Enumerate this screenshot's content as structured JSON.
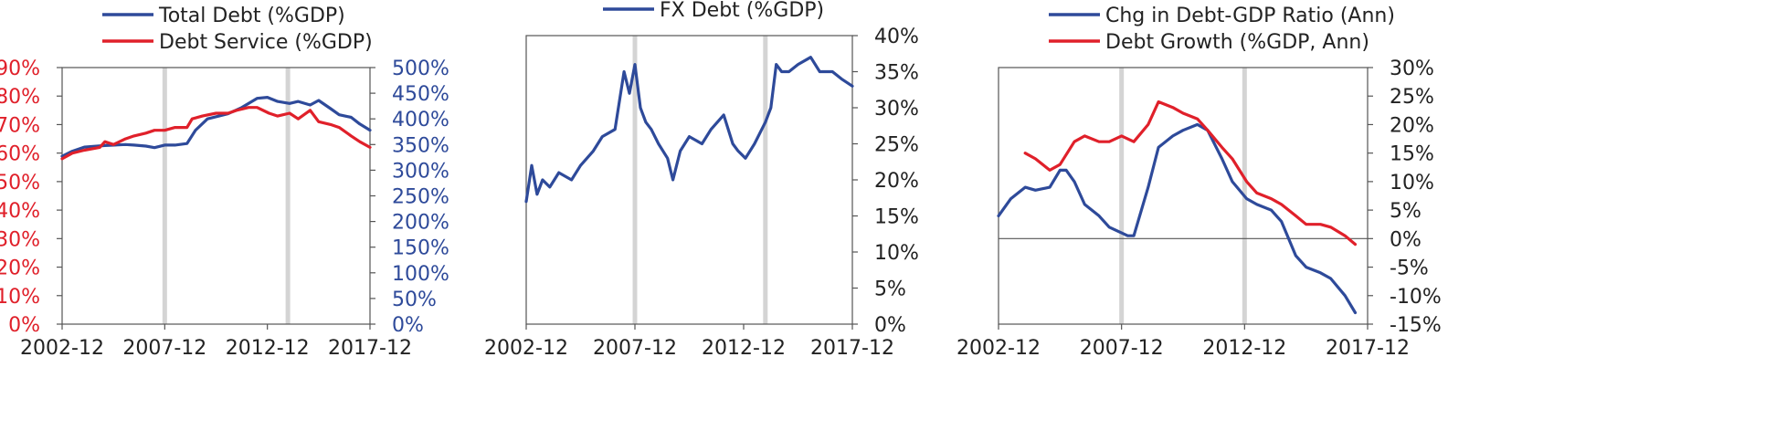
{
  "colors": {
    "blue": "#2e4a9a",
    "red": "#e0202a",
    "axis": "#555555",
    "text": "#222222",
    "shade": "#d4d4d4"
  },
  "chart_data": [
    {
      "type": "line",
      "x_ticks": [
        "2002-12",
        "2007-12",
        "2012-12",
        "2017-12"
      ],
      "xlim": [
        "2002-12",
        "2017-12"
      ],
      "shaded_dates": [
        "2007-12",
        "2013-12"
      ],
      "left_axis": {
        "ylim": [
          0,
          90
        ],
        "ticks": [
          "0%",
          "10%",
          "20%",
          "30%",
          "40%",
          "50%",
          "60%",
          "70%",
          "80%",
          "90%"
        ],
        "color": "red"
      },
      "right_axis": {
        "ylim": [
          0,
          500
        ],
        "ticks": [
          "0%",
          "50%",
          "100%",
          "150%",
          "200%",
          "250%",
          "300%",
          "350%",
          "400%",
          "450%",
          "500%"
        ],
        "color": "blue"
      },
      "legend": [
        "Total Debt (%GDP)",
        "Debt Service (%GDP)"
      ],
      "series": [
        {
          "name": "Total Debt (%GDP)",
          "axis": "right",
          "color": "blue",
          "points": [
            [
              "2002-12",
              327
            ],
            [
              "2003-06",
              337
            ],
            [
              "2004-01",
              345
            ],
            [
              "2005-01",
              348
            ],
            [
              "2006-01",
              350
            ],
            [
              "2006-06",
              349
            ],
            [
              "2007-01",
              347
            ],
            [
              "2007-06",
              344
            ],
            [
              "2007-12",
              349
            ],
            [
              "2008-06",
              349
            ],
            [
              "2009-01",
              352
            ],
            [
              "2009-06",
              378
            ],
            [
              "2010-01",
              400
            ],
            [
              "2011-01",
              410
            ],
            [
              "2011-09",
              422
            ],
            [
              "2012-06",
              440
            ],
            [
              "2012-12",
              442
            ],
            [
              "2013-06",
              434
            ],
            [
              "2014-01",
              430
            ],
            [
              "2014-06",
              434
            ],
            [
              "2015-01",
              427
            ],
            [
              "2015-06",
              436
            ],
            [
              "2016-01",
              420
            ],
            [
              "2016-06",
              408
            ],
            [
              "2017-01",
              403
            ],
            [
              "2017-06",
              390
            ],
            [
              "2017-12",
              378
            ]
          ]
        },
        {
          "name": "Debt Service (%GDP)",
          "axis": "left",
          "color": "red",
          "points": [
            [
              "2002-12",
              58
            ],
            [
              "2003-06",
              60
            ],
            [
              "2004-01",
              61
            ],
            [
              "2004-10",
              62
            ],
            [
              "2005-01",
              64
            ],
            [
              "2005-06",
              63
            ],
            [
              "2006-01",
              65
            ],
            [
              "2006-06",
              66
            ],
            [
              "2007-01",
              67
            ],
            [
              "2007-06",
              68
            ],
            [
              "2007-12",
              68
            ],
            [
              "2008-06",
              69
            ],
            [
              "2009-01",
              69
            ],
            [
              "2009-04",
              72
            ],
            [
              "2009-10",
              73
            ],
            [
              "2010-06",
              74
            ],
            [
              "2011-01",
              74
            ],
            [
              "2011-06",
              75
            ],
            [
              "2012-01",
              76
            ],
            [
              "2012-06",
              76
            ],
            [
              "2013-01",
              74
            ],
            [
              "2013-06",
              73
            ],
            [
              "2014-01",
              74
            ],
            [
              "2014-06",
              72
            ],
            [
              "2015-01",
              75
            ],
            [
              "2015-06",
              71
            ],
            [
              "2016-01",
              70
            ],
            [
              "2016-06",
              69
            ],
            [
              "2017-01",
              66
            ],
            [
              "2017-06",
              64
            ],
            [
              "2017-12",
              62
            ]
          ]
        }
      ]
    },
    {
      "type": "line",
      "x_ticks": [
        "2002-12",
        "2007-12",
        "2012-12",
        "2017-12"
      ],
      "xlim": [
        "2002-12",
        "2017-12"
      ],
      "shaded_dates": [
        "2007-12",
        "2013-12"
      ],
      "right_axis": {
        "ylim": [
          0,
          40
        ],
        "ticks": [
          "0%",
          "5%",
          "10%",
          "15%",
          "20%",
          "25%",
          "30%",
          "35%",
          "40%"
        ],
        "color": "text"
      },
      "legend": [
        "FX Debt (%GDP)"
      ],
      "series": [
        {
          "name": "FX Debt (%GDP)",
          "axis": "right",
          "color": "blue",
          "points": [
            [
              "2002-12",
              17
            ],
            [
              "2003-03",
              22
            ],
            [
              "2003-06",
              18
            ],
            [
              "2003-09",
              20
            ],
            [
              "2004-01",
              19
            ],
            [
              "2004-06",
              21
            ],
            [
              "2005-01",
              20
            ],
            [
              "2005-06",
              22
            ],
            [
              "2006-01",
              24
            ],
            [
              "2006-06",
              26
            ],
            [
              "2007-01",
              27
            ],
            [
              "2007-06",
              35
            ],
            [
              "2007-09",
              32
            ],
            [
              "2007-12",
              36
            ],
            [
              "2008-03",
              30
            ],
            [
              "2008-06",
              28
            ],
            [
              "2008-09",
              27
            ],
            [
              "2009-01",
              25
            ],
            [
              "2009-06",
              23
            ],
            [
              "2009-09",
              20
            ],
            [
              "2010-01",
              24
            ],
            [
              "2010-06",
              26
            ],
            [
              "2011-01",
              25
            ],
            [
              "2011-06",
              27
            ],
            [
              "2012-01",
              29
            ],
            [
              "2012-06",
              25
            ],
            [
              "2012-09",
              24
            ],
            [
              "2013-01",
              23
            ],
            [
              "2013-06",
              25
            ],
            [
              "2013-12",
              28
            ],
            [
              "2014-03",
              30
            ],
            [
              "2014-06",
              36
            ],
            [
              "2014-09",
              35
            ],
            [
              "2015-01",
              35
            ],
            [
              "2015-06",
              36
            ],
            [
              "2016-01",
              37
            ],
            [
              "2016-06",
              35
            ],
            [
              "2017-01",
              35
            ],
            [
              "2017-06",
              34
            ],
            [
              "2017-12",
              33
            ]
          ]
        }
      ]
    },
    {
      "type": "line",
      "x_ticks": [
        "2002-12",
        "2007-12",
        "2012-12",
        "2017-12"
      ],
      "xlim": [
        "2002-12",
        "2017-12"
      ],
      "shaded_dates": [
        "2007-12",
        "2012-12"
      ],
      "right_axis": {
        "ylim": [
          -15,
          30
        ],
        "ticks": [
          "-15%",
          "-10%",
          "-5%",
          "0%",
          "5%",
          "10%",
          "15%",
          "20%",
          "25%",
          "30%"
        ],
        "color": "text"
      },
      "legend": [
        "Chg in Debt-GDP Ratio (Ann)",
        "Debt Growth (%GDP, Ann)"
      ],
      "series": [
        {
          "name": "Chg in Debt-GDP Ratio (Ann)",
          "axis": "right",
          "color": "blue",
          "points": [
            [
              "2002-12",
              4
            ],
            [
              "2003-06",
              7
            ],
            [
              "2004-01",
              9
            ],
            [
              "2004-06",
              8.5
            ],
            [
              "2005-01",
              9
            ],
            [
              "2005-06",
              12
            ],
            [
              "2005-09",
              12
            ],
            [
              "2006-01",
              10
            ],
            [
              "2006-06",
              6
            ],
            [
              "2007-01",
              4
            ],
            [
              "2007-06",
              2
            ],
            [
              "2007-12",
              1
            ],
            [
              "2008-03",
              0.5
            ],
            [
              "2008-06",
              0.5
            ],
            [
              "2009-01",
              9
            ],
            [
              "2009-06",
              16
            ],
            [
              "2010-01",
              18
            ],
            [
              "2010-06",
              19
            ],
            [
              "2011-01",
              20
            ],
            [
              "2011-06",
              19
            ],
            [
              "2012-01",
              14
            ],
            [
              "2012-06",
              10
            ],
            [
              "2013-01",
              7
            ],
            [
              "2013-06",
              6
            ],
            [
              "2014-01",
              5
            ],
            [
              "2014-06",
              3
            ],
            [
              "2015-01",
              -3
            ],
            [
              "2015-06",
              -5
            ],
            [
              "2016-01",
              -6
            ],
            [
              "2016-06",
              -7
            ],
            [
              "2017-01",
              -10
            ],
            [
              "2017-06",
              -13
            ]
          ]
        },
        {
          "name": "Debt Growth (%GDP, Ann)",
          "axis": "right",
          "color": "red",
          "points": [
            [
              "2004-01",
              15
            ],
            [
              "2004-06",
              14
            ],
            [
              "2005-01",
              12
            ],
            [
              "2005-06",
              13
            ],
            [
              "2006-01",
              17
            ],
            [
              "2006-06",
              18
            ],
            [
              "2007-01",
              17
            ],
            [
              "2007-06",
              17
            ],
            [
              "2007-12",
              18
            ],
            [
              "2008-06",
              17
            ],
            [
              "2009-01",
              20
            ],
            [
              "2009-06",
              24
            ],
            [
              "2010-01",
              23
            ],
            [
              "2010-06",
              22
            ],
            [
              "2011-01",
              21
            ],
            [
              "2011-06",
              19
            ],
            [
              "2012-01",
              16
            ],
            [
              "2012-06",
              14
            ],
            [
              "2013-01",
              10
            ],
            [
              "2013-06",
              8
            ],
            [
              "2014-01",
              7
            ],
            [
              "2014-06",
              6
            ],
            [
              "2015-01",
              4
            ],
            [
              "2015-06",
              2.5
            ],
            [
              "2016-01",
              2.5
            ],
            [
              "2016-06",
              2
            ],
            [
              "2017-01",
              0.5
            ],
            [
              "2017-06",
              -1
            ]
          ]
        }
      ]
    }
  ]
}
